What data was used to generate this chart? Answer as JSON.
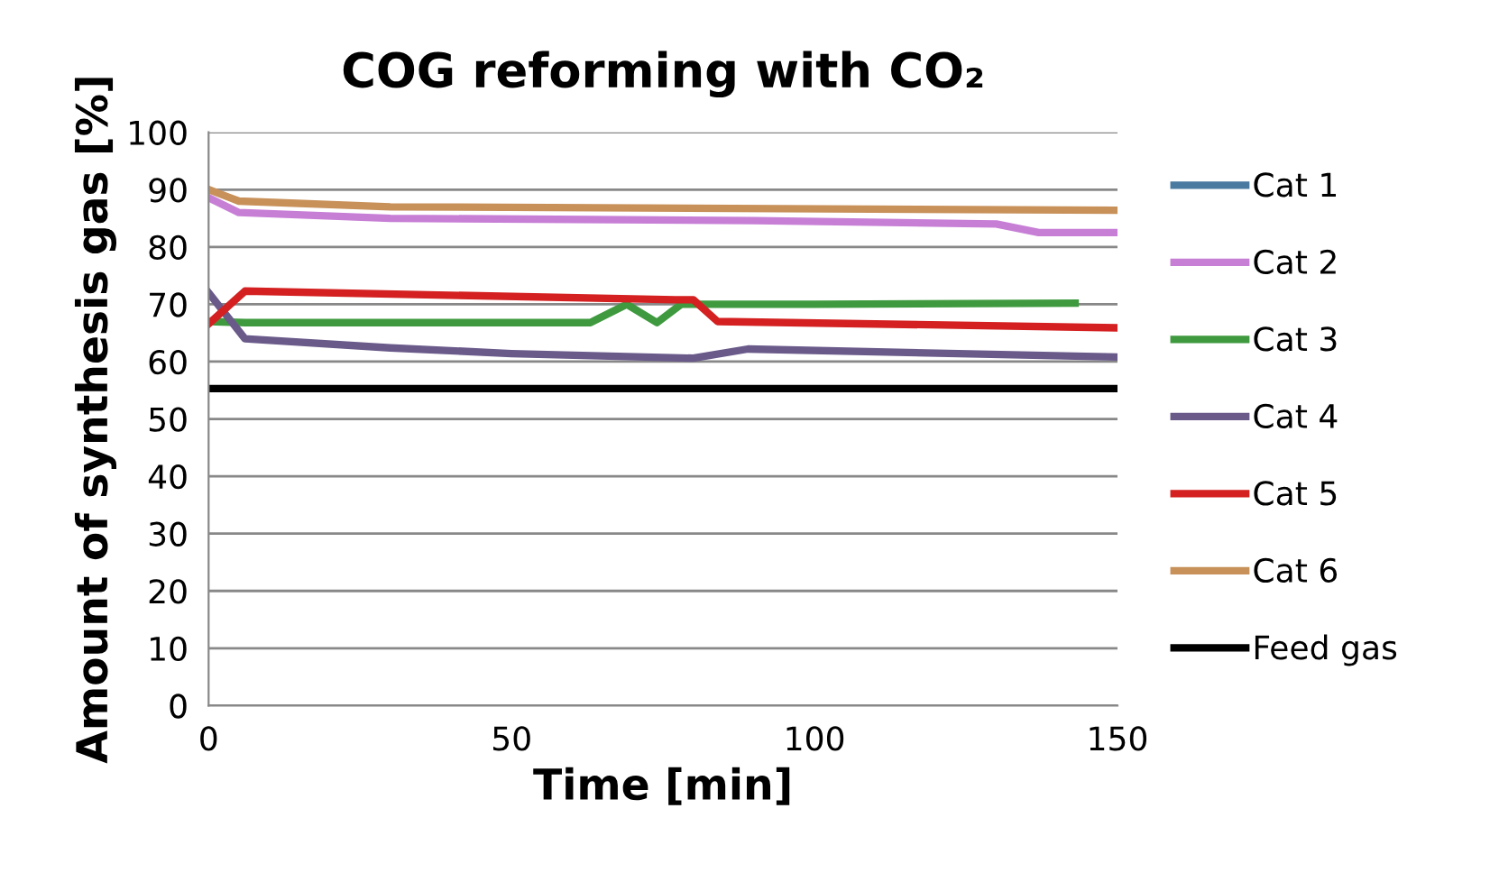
{
  "chart_data": {
    "type": "line",
    "title": "COG reforming with CO₂",
    "xlabel": "Time [min]",
    "ylabel": "Amount of synthesis gas [%]",
    "xlim": [
      0,
      150
    ],
    "xticks": [
      0,
      50,
      100,
      150
    ],
    "ylim": [
      0,
      100
    ],
    "yticks": [
      0,
      10,
      20,
      30,
      40,
      50,
      60,
      70,
      80,
      90,
      100
    ],
    "grid": "y",
    "legend": "right",
    "marker": "none",
    "line_style": "solid",
    "series": [
      {
        "name": "Cat 1",
        "color": "#4a7aa0"
      },
      {
        "name": "Cat 2",
        "color": "#c77fd6",
        "x": [
          0,
          5,
          30,
          90,
          130,
          137,
          150
        ],
        "values": [
          88.6,
          86,
          85,
          84.6,
          84,
          82.5,
          82.5
        ]
      },
      {
        "name": "Cat 3",
        "color": "#3f9a3f",
        "x": [
          0,
          6,
          63,
          69,
          74,
          78,
          100,
          143
        ],
        "values": [
          67,
          66.8,
          66.8,
          70,
          66.8,
          70,
          70,
          70.2
        ]
      },
      {
        "name": "Cat 4",
        "color": "#6a5a8a",
        "x": [
          0,
          6,
          30,
          50,
          80,
          89,
          150
        ],
        "values": [
          72,
          64,
          62.4,
          61.4,
          60.6,
          62.2,
          60.8
        ]
      },
      {
        "name": "Cat 5",
        "color": "#d42020",
        "x": [
          0,
          6,
          77,
          80,
          84,
          150
        ],
        "values": [
          66.6,
          72.3,
          70.8,
          70.8,
          67,
          65.9
        ]
      },
      {
        "name": "Cat 6",
        "color": "#c8915a",
        "x": [
          0,
          5,
          30,
          150
        ],
        "values": [
          90,
          88,
          87,
          86.4
        ]
      },
      {
        "name": "Feed gas",
        "color": "#000000",
        "x": [
          0,
          150
        ],
        "values": [
          55.3,
          55.3
        ]
      }
    ]
  }
}
